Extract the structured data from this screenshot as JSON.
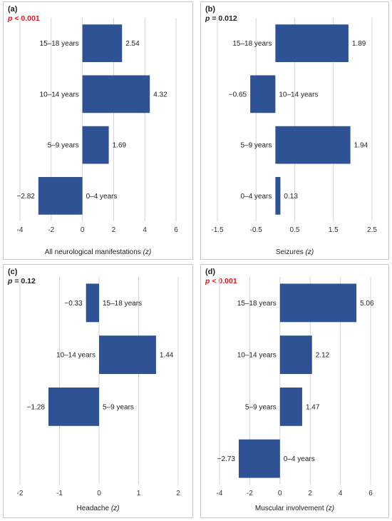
{
  "colors": {
    "bar": "#2e5294",
    "grid": "#d4d4d4",
    "significant": "#e3151a"
  },
  "chart_data": [
    {
      "type": "bar",
      "orientation": "horizontal",
      "panel": "(a)",
      "p_prefix": "p",
      "p_rest": " < 0.001",
      "p_significant": true,
      "xlabel": "All neurological manifestations",
      "xlabel_unit": "(z)",
      "categories": [
        "15–18 years",
        "10–14 years",
        "5–9 years",
        "0–4 years"
      ],
      "values": [
        2.54,
        4.32,
        1.69,
        -2.82
      ],
      "data_labels": [
        "2.54",
        "4.32",
        "1.69",
        "−2.82"
      ],
      "xlim": [
        -4,
        6
      ],
      "xticks": [
        -4,
        -2,
        0,
        2,
        4,
        6
      ],
      "xtick_labels": [
        "-4",
        "-2",
        "0",
        "2",
        "4",
        "6"
      ],
      "grid": "vertical"
    },
    {
      "type": "bar",
      "orientation": "horizontal",
      "panel": "(b)",
      "p_prefix": "p",
      "p_rest": " = 0.012",
      "p_significant": false,
      "xlabel": "Seizures",
      "xlabel_unit": "(z)",
      "categories": [
        "15–18 years",
        "10–14 years",
        "5–9 years",
        "0–4 years"
      ],
      "values": [
        1.89,
        -0.65,
        1.94,
        0.13
      ],
      "data_labels": [
        "1.89",
        "−0.65",
        "1.94",
        "0.13"
      ],
      "xlim": [
        -1.5,
        2.5
      ],
      "xticks": [
        -1.5,
        -0.5,
        0.5,
        1.5,
        2.5
      ],
      "xtick_labels": [
        "-1.5",
        "-0.5",
        "0.5",
        "1.5",
        "2.5"
      ],
      "grid": "vertical"
    },
    {
      "type": "bar",
      "orientation": "horizontal",
      "panel": "(c)",
      "p_prefix": "p",
      "p_rest": " = 0.12",
      "p_significant": false,
      "xlabel": "Headache",
      "xlabel_unit": "(z)",
      "categories": [
        "15–18 years",
        "10–14 years",
        "5–9 years"
      ],
      "values": [
        -0.33,
        1.44,
        -1.28
      ],
      "data_labels": [
        "−0.33",
        "1.44",
        "−1.28"
      ],
      "xlim": [
        -2,
        2
      ],
      "xticks": [
        -2,
        -1,
        0,
        1,
        2
      ],
      "xtick_labels": [
        "-2",
        "-1",
        "0",
        "1",
        "2"
      ],
      "grid": "vertical"
    },
    {
      "type": "bar",
      "orientation": "horizontal",
      "panel": "(d)",
      "p_prefix": "p",
      "p_rest": " < 0.001",
      "p_significant": true,
      "xlabel": "Muscular involvement",
      "xlabel_unit": "(z)",
      "categories": [
        "15–18 years",
        "10–14 years",
        "5–9 years",
        "0–4 years"
      ],
      "values": [
        5.06,
        2.12,
        1.47,
        -2.73
      ],
      "data_labels": [
        "5.06",
        "2.12",
        "1.47",
        "−2.73"
      ],
      "xlim": [
        -4,
        6
      ],
      "xticks": [
        -4,
        -2,
        0,
        2,
        4,
        6
      ],
      "xtick_labels": [
        "-4",
        "-2",
        "0",
        "2",
        "4",
        "6"
      ],
      "grid": "vertical"
    }
  ]
}
